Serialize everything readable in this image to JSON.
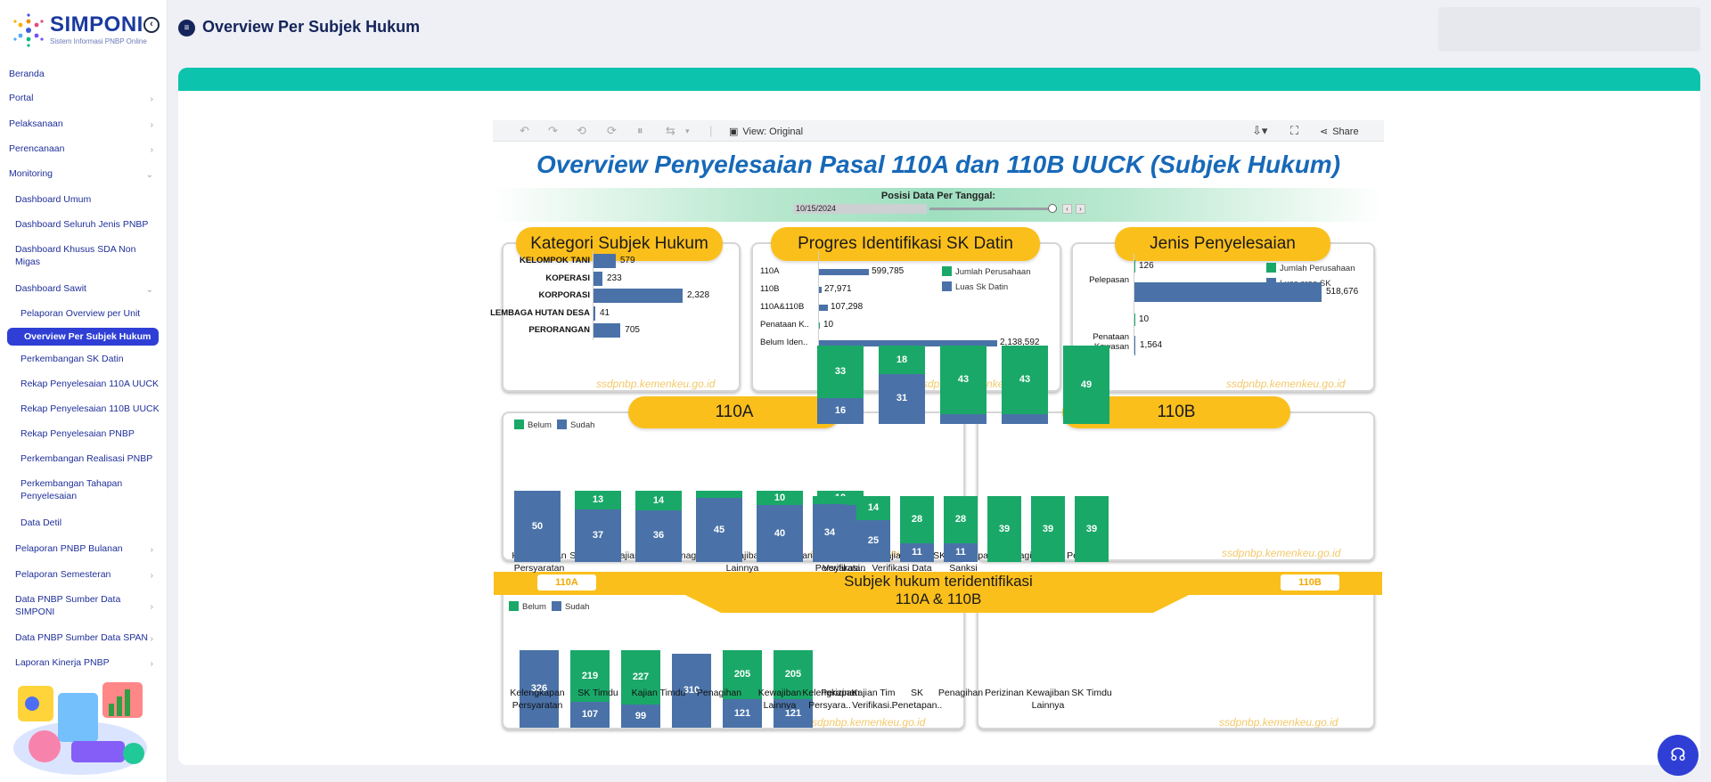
{
  "app": {
    "brand": "SIMPONI",
    "tagline": "Sistem Informasi PNBP Online"
  },
  "page": {
    "title": "Overview Per Subjek Hukum"
  },
  "sidebar": {
    "items": [
      {
        "label": "Beranda"
      },
      {
        "label": "Portal"
      },
      {
        "label": "Pelaksanaan"
      },
      {
        "label": "Perencanaan"
      },
      {
        "label": "Monitoring"
      },
      {
        "label": "Dashboard Umum"
      },
      {
        "label": "Dashboard Seluruh Jenis PNBP"
      },
      {
        "label": "Dashboard Khusus SDA Non Migas"
      },
      {
        "label": "Dashboard Sawit"
      },
      {
        "label": "Pelaporan Overview per Unit"
      },
      {
        "label": "Overview Per Subjek Hukum"
      },
      {
        "label": "Perkembangan SK Datin"
      },
      {
        "label": "Rekap Penyelesaian 110A UUCK"
      },
      {
        "label": "Rekap Penyelesaian 110B UUCK"
      },
      {
        "label": "Rekap Penyelesaian PNBP"
      },
      {
        "label": "Perkembangan Realisasi PNBP"
      },
      {
        "label": "Perkembangan Tahapan Penyelesaian"
      },
      {
        "label": "Data Detil"
      },
      {
        "label": "Pelaporan PNBP Bulanan"
      },
      {
        "label": "Pelaporan Semesteran"
      },
      {
        "label": "Data PNBP Sumber Data SIMPONI"
      },
      {
        "label": "Data PNBP Sumber Data SPAN"
      },
      {
        "label": "Laporan Kinerja PNBP"
      }
    ]
  },
  "toolbar": {
    "view_label": "View: Original",
    "share_label": "Share"
  },
  "dashboard": {
    "title": "Overview Penyelesaian Pasal 110A dan 110B UUCK (Subjek Hukum)",
    "date_label": "Posisi Data Per Tanggal:",
    "date_value": "10/15/2024",
    "watermark": "ssdpnbp.kemenkeu.go.id",
    "banner_title_line1": "Subjek hukum teridentifikasi",
    "banner_title_line2": "110A & 110B",
    "banner_tag_left": "110A",
    "banner_tag_right": "110B"
  },
  "colors": {
    "belum": "#1aa868",
    "sudah": "#4a72a8",
    "accent": "#fbbf1c",
    "band": "#0cc4ad",
    "title": "#1769b8"
  },
  "chart_data": [
    {
      "type": "bar",
      "title": "Kategori Subjek Hukum",
      "orientation": "horizontal",
      "categories": [
        "KELOMPOK TANI",
        "KOPERASI",
        "KORPORASI",
        "LEMBAGA HUTAN DESA",
        "PERORANGAN"
      ],
      "values": [
        579,
        233,
        2328,
        41,
        705
      ]
    },
    {
      "type": "bar",
      "title": "Progres Identifikasi SK Datin",
      "orientation": "horizontal",
      "categories": [
        "110A",
        "110B",
        "110A&110B",
        "Penataan K..",
        "Belum Iden.."
      ],
      "series": [
        {
          "name": "Jumlah Perusahaan",
          "values": [
            null,
            null,
            null,
            10,
            null
          ]
        },
        {
          "name": "Luas Sk Datin",
          "values": [
            599785,
            27971,
            107298,
            null,
            2138592
          ]
        }
      ]
    },
    {
      "type": "bar",
      "title": "Jenis Penyelesaian",
      "orientation": "horizontal",
      "categories": [
        "Pelepasan",
        "Penataan Kawasan"
      ],
      "series": [
        {
          "name": "Jumlah Perusahaan",
          "values": [
            126,
            10
          ]
        },
        {
          "name": "Luas area SK",
          "values": [
            518676,
            1564
          ]
        }
      ]
    },
    {
      "type": "bar",
      "title": "110A",
      "stacked": true,
      "categories": [
        "Kelengkapan Persyaratan",
        "SK Timdu",
        "Kajian Timdu",
        "Penagihan",
        "Kewajiban Lainnya",
        "Perizinan",
        "Kajian Tim Verifikasi.."
      ],
      "series": [
        {
          "name": "Belum",
          "values": [
            null,
            219,
            227,
            null,
            205,
            205,
            null
          ]
        },
        {
          "name": "Sudah",
          "values": [
            326,
            107,
            99,
            310,
            121,
            121,
            null
          ]
        }
      ]
    },
    {
      "type": "bar",
      "title": "110B",
      "stacked": true,
      "categories": [
        "Kelengkapan Persyaratan",
        "Kajian Tim Verifikasi Data",
        "SK Penetapan Sanksi",
        "Penagihan",
        "Perizinan"
      ],
      "series": [
        {
          "name": "Belum",
          "values": [
            33,
            18,
            43,
            43,
            49
          ]
        },
        {
          "name": "Sudah",
          "values": [
            16,
            31,
            6,
            6,
            null
          ]
        }
      ]
    },
    {
      "type": "bar",
      "title": "Subjek hukum teridentifikasi 110A",
      "stacked": true,
      "categories": [
        "Kelengkapan Persyaratan",
        "SK Timdu",
        "Kajian Timdu",
        "Penagihan",
        "Kewajiban Lainnya",
        "Perizinan"
      ],
      "series": [
        {
          "name": "Belum",
          "values": [
            null,
            13,
            14,
            5,
            10,
            10
          ]
        },
        {
          "name": "Sudah",
          "values": [
            50,
            37,
            36,
            45,
            40,
            40
          ]
        }
      ]
    },
    {
      "type": "bar",
      "title": "Subjek hukum teridentifikasi 110B",
      "stacked": true,
      "categories": [
        "Kelengkapan Persyara..",
        "Kajian Tim Verifikasi..",
        "SK Penetapan..",
        "Penagihan",
        "Perizinan",
        "Kewajiban Lainnya",
        "SK Timdu"
      ],
      "series": [
        {
          "name": "Belum",
          "values": [
            5,
            14,
            28,
            28,
            39,
            39,
            39
          ]
        },
        {
          "name": "Sudah",
          "values": [
            34,
            25,
            11,
            11,
            null,
            null,
            null
          ]
        }
      ]
    }
  ]
}
